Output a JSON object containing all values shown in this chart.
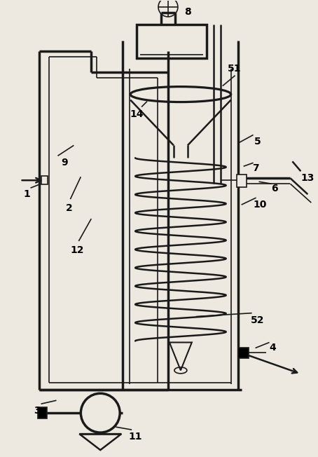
{
  "bg_color": "#ede8e0",
  "line_color": "#1a1a1a",
  "lw_thin": 1.2,
  "lw_mid": 1.8,
  "lw_thick": 2.5
}
